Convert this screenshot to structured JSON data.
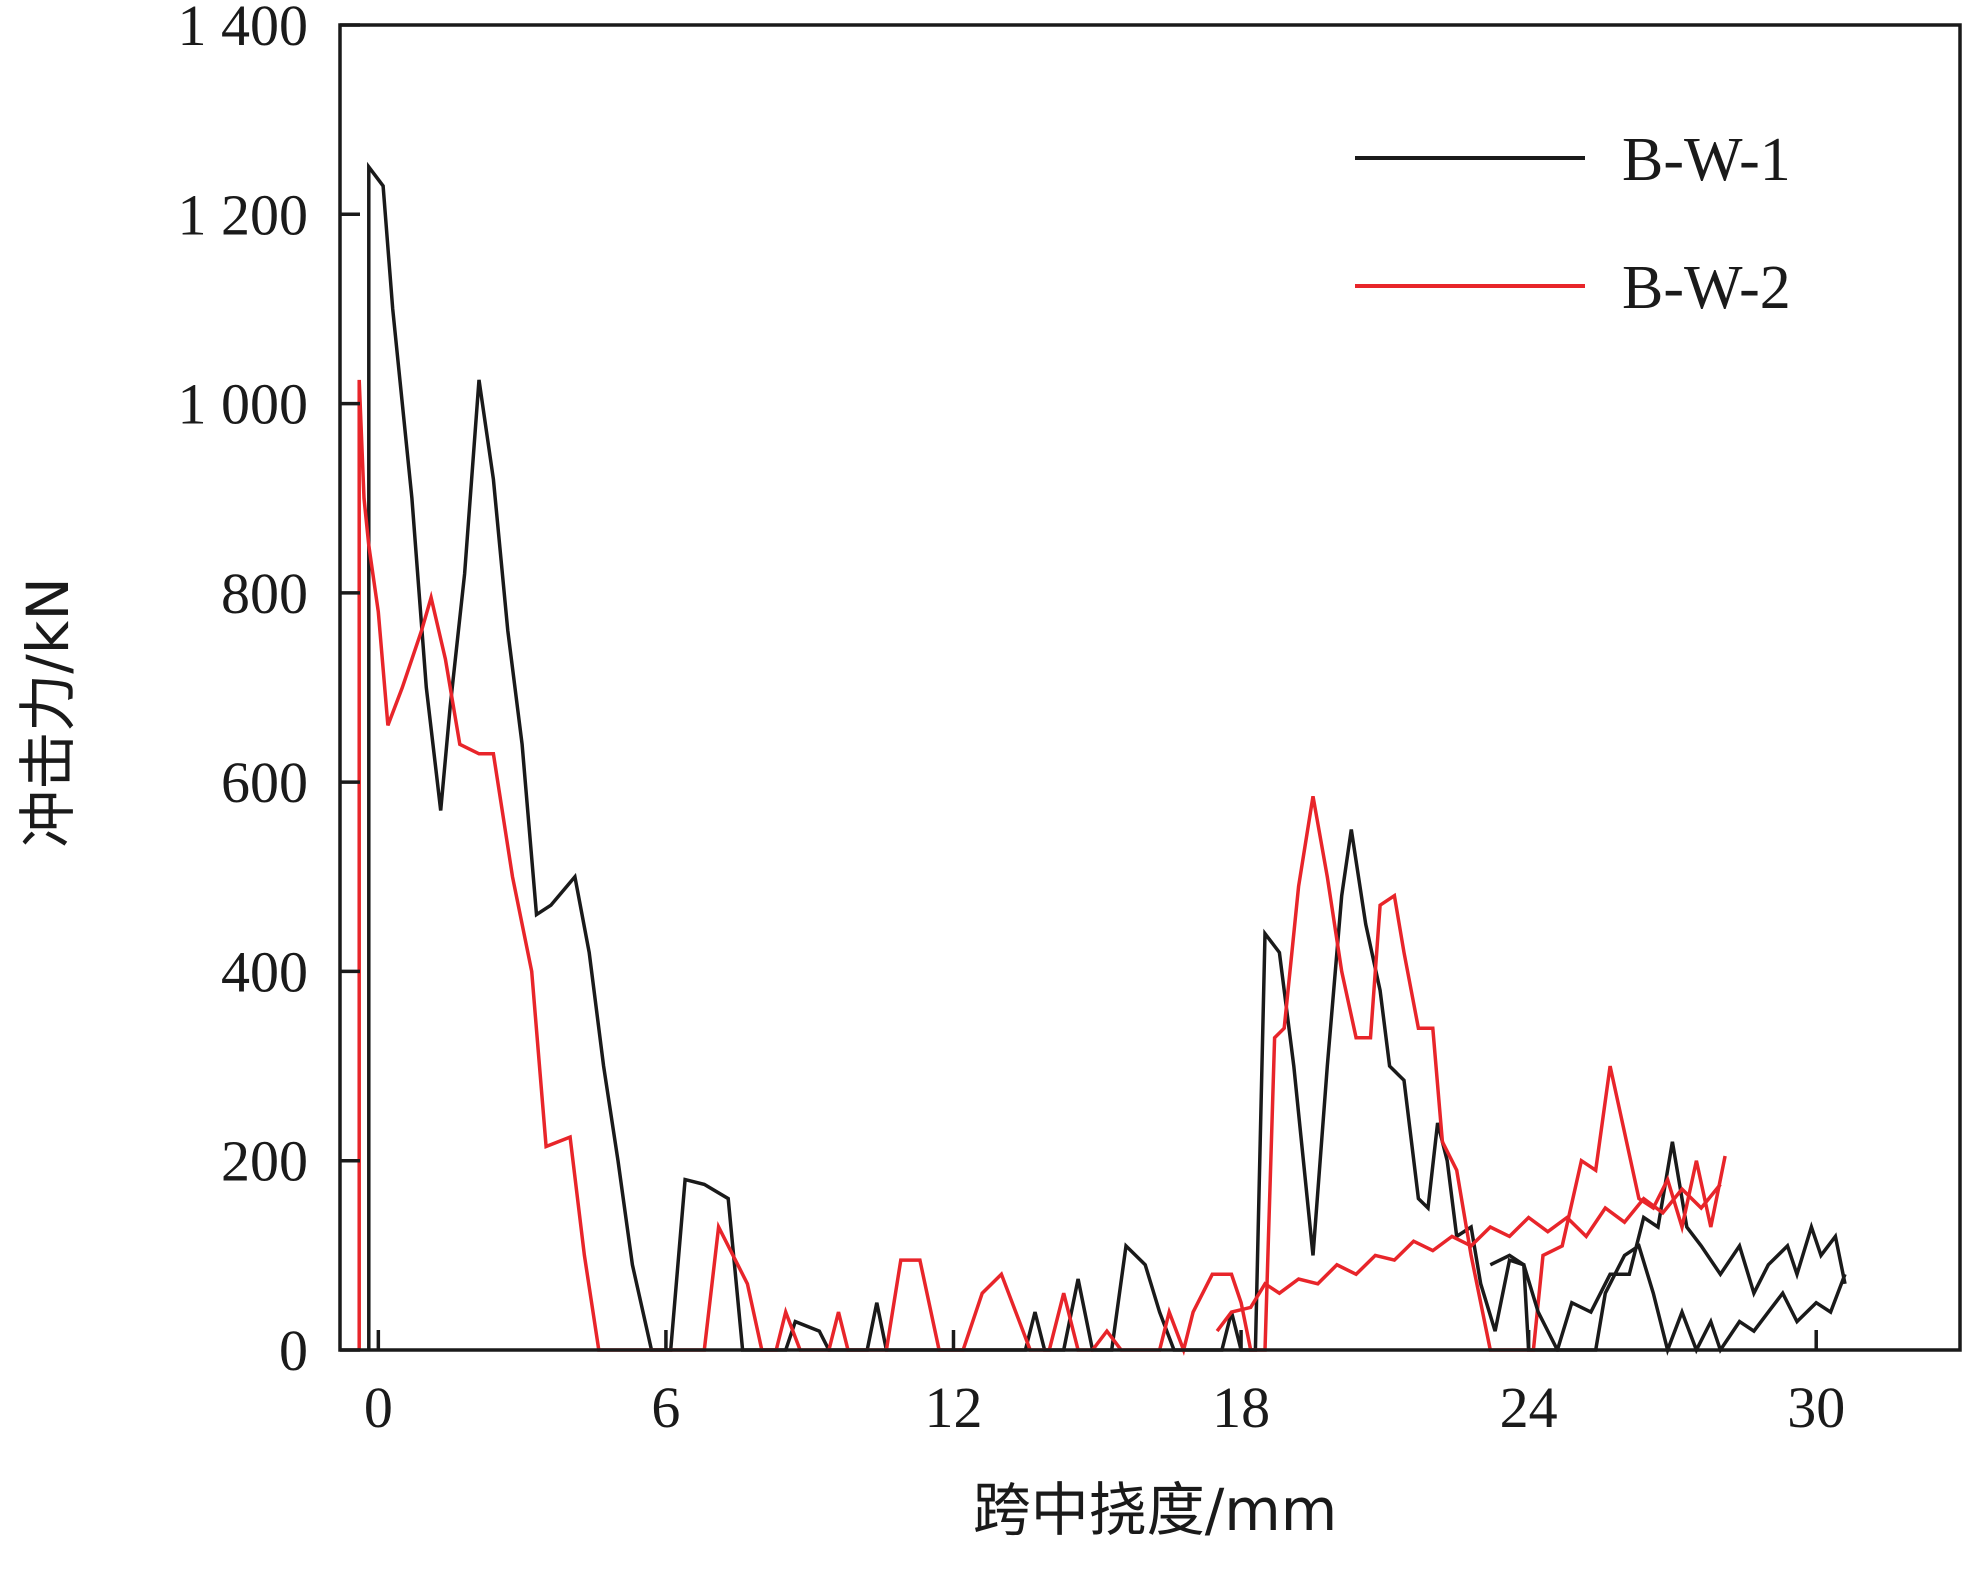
{
  "chart_data": {
    "type": "line",
    "title": "",
    "xlabel": "跨中挠度/mm",
    "ylabel": "冲击力/kN",
    "xlim": [
      -0.8,
      33
    ],
    "ylim": [
      0,
      1400
    ],
    "xticks": [
      0,
      6,
      12,
      18,
      24,
      30
    ],
    "xtick_labels": [
      "0",
      "6",
      "12",
      "18",
      "24",
      "30"
    ],
    "yticks": [
      0,
      200,
      400,
      600,
      800,
      1000,
      1200,
      1400
    ],
    "ytick_labels": [
      "0",
      "200",
      "400",
      "600",
      "800",
      "1 000",
      "1 200",
      "1 400"
    ],
    "grid": false,
    "legend_position": "top-right",
    "series": [
      {
        "name": "B-W-1",
        "color": "#1a1a1a",
        "points": [
          [
            -0.2,
            0
          ],
          [
            -0.2,
            1250
          ],
          [
            0.1,
            1230
          ],
          [
            0.3,
            1100
          ],
          [
            0.7,
            900
          ],
          [
            1.0,
            700
          ],
          [
            1.3,
            570
          ],
          [
            1.5,
            680
          ],
          [
            1.8,
            820
          ],
          [
            2.1,
            1025
          ],
          [
            2.4,
            920
          ],
          [
            2.7,
            760
          ],
          [
            3.0,
            640
          ],
          [
            3.3,
            460
          ],
          [
            3.6,
            470
          ],
          [
            4.1,
            500
          ],
          [
            4.4,
            420
          ],
          [
            4.7,
            300
          ],
          [
            5.0,
            200
          ],
          [
            5.3,
            90
          ],
          [
            5.7,
            0
          ],
          [
            6.1,
            0
          ],
          [
            6.4,
            180
          ],
          [
            6.8,
            175
          ],
          [
            7.3,
            160
          ],
          [
            7.6,
            0
          ],
          [
            8.5,
            0
          ],
          [
            8.7,
            30
          ],
          [
            9.2,
            20
          ],
          [
            9.4,
            0
          ],
          [
            10.2,
            0
          ],
          [
            10.4,
            50
          ],
          [
            10.6,
            0
          ],
          [
            13.5,
            0
          ],
          [
            13.7,
            40
          ],
          [
            13.9,
            0
          ],
          [
            14.3,
            0
          ],
          [
            14.6,
            75
          ],
          [
            14.9,
            0
          ],
          [
            15.3,
            0
          ],
          [
            15.6,
            110
          ],
          [
            16.0,
            90
          ],
          [
            16.3,
            40
          ],
          [
            16.6,
            0
          ],
          [
            17.6,
            0
          ],
          [
            17.8,
            40
          ],
          [
            18.0,
            0
          ],
          [
            18.3,
            0
          ],
          [
            18.5,
            440
          ],
          [
            18.8,
            420
          ],
          [
            19.1,
            300
          ],
          [
            19.3,
            200
          ],
          [
            19.5,
            100
          ],
          [
            19.8,
            300
          ],
          [
            20.1,
            480
          ],
          [
            20.3,
            550
          ],
          [
            20.6,
            450
          ],
          [
            20.9,
            380
          ],
          [
            21.1,
            300
          ],
          [
            21.4,
            285
          ],
          [
            21.7,
            160
          ],
          [
            21.9,
            150
          ],
          [
            22.1,
            240
          ],
          [
            22.3,
            200
          ],
          [
            22.5,
            120
          ],
          [
            22.8,
            130
          ],
          [
            23.0,
            70
          ],
          [
            23.3,
            20
          ],
          [
            23.6,
            95
          ],
          [
            23.9,
            90
          ],
          [
            24.0,
            0
          ],
          [
            24.6,
            0
          ],
          [
            24.9,
            50
          ],
          [
            25.3,
            40
          ],
          [
            25.7,
            80
          ],
          [
            26.1,
            80
          ],
          [
            26.4,
            140
          ],
          [
            26.7,
            130
          ],
          [
            27.0,
            220
          ],
          [
            27.3,
            130
          ],
          [
            27.6,
            110
          ],
          [
            28.0,
            80
          ],
          [
            28.4,
            110
          ],
          [
            28.7,
            60
          ],
          [
            29.0,
            90
          ],
          [
            29.4,
            110
          ],
          [
            29.6,
            80
          ],
          [
            29.9,
            130
          ],
          [
            30.1,
            100
          ],
          [
            30.4,
            120
          ],
          [
            30.6,
            70
          ]
        ]
      },
      {
        "name": "B-W-2",
        "color": "#e8252a",
        "points": [
          [
            -0.4,
            0
          ],
          [
            -0.4,
            1025
          ],
          [
            -0.3,
            900
          ],
          [
            -0.2,
            850
          ],
          [
            0.0,
            780
          ],
          [
            0.2,
            660
          ],
          [
            0.5,
            700
          ],
          [
            0.9,
            760
          ],
          [
            1.1,
            795
          ],
          [
            1.4,
            730
          ],
          [
            1.7,
            640
          ],
          [
            2.1,
            630
          ],
          [
            2.4,
            630
          ],
          [
            2.8,
            500
          ],
          [
            3.2,
            400
          ],
          [
            3.5,
            215
          ],
          [
            4.0,
            225
          ],
          [
            4.3,
            100
          ],
          [
            4.6,
            0
          ],
          [
            6.8,
            0
          ],
          [
            7.1,
            130
          ],
          [
            7.5,
            90
          ],
          [
            7.7,
            70
          ],
          [
            8.0,
            0
          ],
          [
            8.3,
            0
          ],
          [
            8.5,
            40
          ],
          [
            8.8,
            0
          ],
          [
            9.4,
            0
          ],
          [
            9.6,
            40
          ],
          [
            9.8,
            0
          ],
          [
            10.6,
            0
          ],
          [
            10.9,
            95
          ],
          [
            11.3,
            95
          ],
          [
            11.7,
            0
          ],
          [
            12.2,
            0
          ],
          [
            12.6,
            60
          ],
          [
            13.0,
            80
          ],
          [
            13.3,
            40
          ],
          [
            13.6,
            0
          ],
          [
            14.0,
            0
          ],
          [
            14.3,
            60
          ],
          [
            14.6,
            0
          ],
          [
            14.9,
            0
          ],
          [
            15.2,
            20
          ],
          [
            15.5,
            0
          ],
          [
            16.3,
            0
          ],
          [
            16.5,
            40
          ],
          [
            16.8,
            0
          ],
          [
            17.0,
            40
          ],
          [
            17.4,
            80
          ],
          [
            17.8,
            80
          ],
          [
            18.0,
            50
          ],
          [
            18.2,
            0
          ],
          [
            18.5,
            0
          ],
          [
            18.7,
            330
          ],
          [
            18.9,
            340
          ],
          [
            19.2,
            490
          ],
          [
            19.5,
            585
          ],
          [
            19.8,
            500
          ],
          [
            20.1,
            400
          ],
          [
            20.4,
            330
          ],
          [
            20.7,
            330
          ],
          [
            20.9,
            470
          ],
          [
            21.2,
            480
          ],
          [
            21.4,
            420
          ],
          [
            21.7,
            340
          ],
          [
            22.0,
            340
          ],
          [
            22.2,
            220
          ],
          [
            22.5,
            190
          ],
          [
            22.8,
            100
          ],
          [
            23.2,
            0
          ],
          [
            23.6,
            0
          ],
          [
            24.1,
            0
          ],
          [
            24.3,
            100
          ],
          [
            24.7,
            110
          ],
          [
            25.1,
            200
          ],
          [
            25.4,
            190
          ],
          [
            25.7,
            300
          ],
          [
            26.0,
            230
          ],
          [
            26.3,
            160
          ],
          [
            26.6,
            150
          ],
          [
            26.9,
            180
          ],
          [
            27.2,
            130
          ],
          [
            27.5,
            200
          ],
          [
            27.8,
            130
          ],
          [
            28.1,
            205
          ]
        ]
      },
      {
        "name": "",
        "color": "#1a1a1a",
        "points": [
          [
            23.2,
            90
          ],
          [
            23.6,
            100
          ],
          [
            23.9,
            90
          ],
          [
            24.2,
            40
          ],
          [
            24.6,
            0
          ],
          [
            25.4,
            0
          ],
          [
            25.6,
            60
          ],
          [
            26.0,
            100
          ],
          [
            26.3,
            110
          ],
          [
            26.6,
            60
          ],
          [
            26.9,
            0
          ],
          [
            27.2,
            40
          ],
          [
            27.5,
            0
          ],
          [
            27.8,
            30
          ],
          [
            28.0,
            0
          ],
          [
            28.4,
            30
          ],
          [
            28.7,
            20
          ],
          [
            29.0,
            40
          ],
          [
            29.3,
            60
          ],
          [
            29.6,
            30
          ],
          [
            30.0,
            50
          ],
          [
            30.3,
            40
          ],
          [
            30.6,
            80
          ]
        ]
      },
      {
        "name": "",
        "color": "#e8252a",
        "points": [
          [
            17.5,
            20
          ],
          [
            17.8,
            40
          ],
          [
            18.2,
            45
          ],
          [
            18.5,
            70
          ],
          [
            18.8,
            60
          ],
          [
            19.2,
            75
          ],
          [
            19.6,
            70
          ],
          [
            20.0,
            90
          ],
          [
            20.4,
            80
          ],
          [
            20.8,
            100
          ],
          [
            21.2,
            95
          ],
          [
            21.6,
            115
          ],
          [
            22.0,
            105
          ],
          [
            22.4,
            120
          ],
          [
            22.8,
            110
          ],
          [
            23.2,
            130
          ],
          [
            23.6,
            120
          ],
          [
            24.0,
            140
          ],
          [
            24.4,
            125
          ],
          [
            24.8,
            140
          ],
          [
            25.2,
            120
          ],
          [
            25.6,
            150
          ],
          [
            26.0,
            135
          ],
          [
            26.4,
            160
          ],
          [
            26.8,
            145
          ],
          [
            27.2,
            170
          ],
          [
            27.6,
            150
          ],
          [
            28.0,
            175
          ]
        ]
      }
    ]
  }
}
